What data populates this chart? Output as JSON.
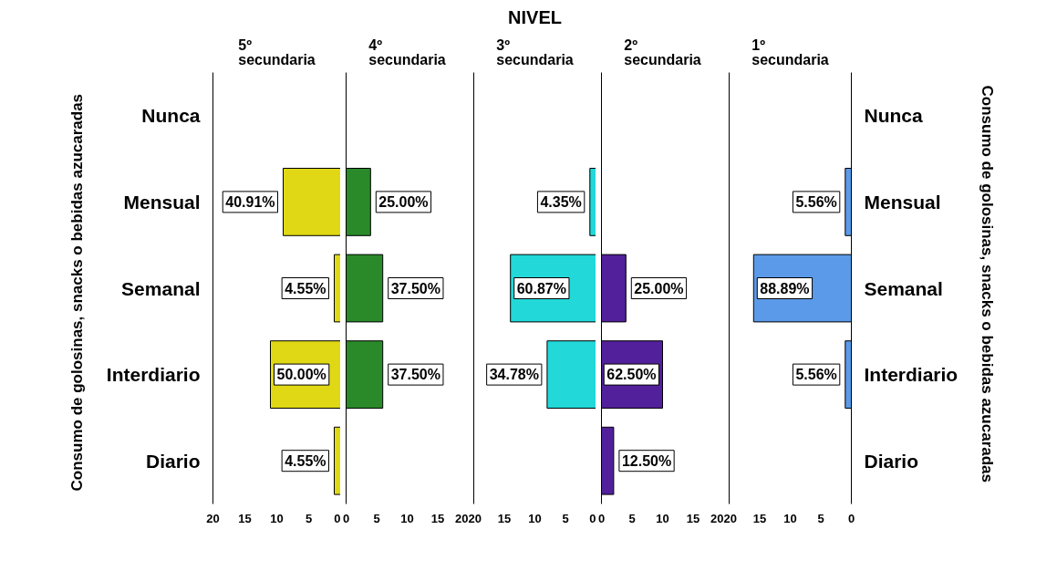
{
  "chart_data": [
    {
      "type": "bar",
      "orientation": "horizontal",
      "subtitle": "5º secundaria",
      "ylabel": "Consumo  de  golosinas, snacks o bebidas azucaradas",
      "categories": [
        "Nunca",
        "Mensual",
        "Semanal",
        "Interdiario",
        "Diario"
      ],
      "values": [
        null,
        9,
        1,
        11,
        1
      ],
      "color": "#e0d814",
      "xlim": [
        20,
        0
      ],
      "xticks": [
        20,
        15,
        10,
        5,
        0
      ],
      "annotations": [
        {
          "text": "40.91%",
          "x": 9,
          "y": "Mensual"
        },
        {
          "text": "4.55%",
          "x": 1,
          "y": "Semanal"
        },
        {
          "text": "50.00%",
          "x": 11,
          "y": "Interdiario"
        },
        {
          "text": "4.55%",
          "x": 1,
          "y": "Diario"
        }
      ]
    },
    {
      "type": "bar",
      "orientation": "horizontal",
      "subtitle": "4º secundaria",
      "tick_labels": "x",
      "categories": [
        "Nunca",
        "Mensual",
        "Semanal",
        "Interdiario",
        "Diario"
      ],
      "values": [
        null,
        4,
        6,
        6,
        null
      ],
      "color": "#2a8a2a",
      "xlim": [
        0,
        20
      ],
      "xticks": [
        0,
        5,
        10,
        15,
        20
      ],
      "annotations": [
        {
          "text": "25.00%",
          "x": 4,
          "y": "Mensual"
        },
        {
          "text": "37.50%",
          "x": 6,
          "y": "Semanal"
        },
        {
          "text": "37.50%",
          "x": 6,
          "y": "Interdiario"
        }
      ]
    },
    {
      "type": "bar",
      "orientation": "horizontal",
      "title": "NIVEL",
      "subtitle": "3º secundaria",
      "tick_labels": "x",
      "categories": [
        "Nunca",
        "Mensual",
        "Semanal",
        "Interdiario",
        "Diario"
      ],
      "values": [
        null,
        1,
        14,
        8,
        null
      ],
      "color": "#22d8d8",
      "xlim": [
        20,
        0
      ],
      "xticks": [
        20,
        15,
        10,
        5,
        0
      ],
      "annotations": [
        {
          "text": "4.35%",
          "x": 1,
          "y": "Mensual"
        },
        {
          "text": "60.87%",
          "x": 14,
          "y": "Semanal"
        },
        {
          "text": "34.78%",
          "x": 8,
          "y": "Interdiario"
        }
      ]
    },
    {
      "type": "bar",
      "orientation": "horizontal",
      "subtitle": "2º secundaria",
      "tick_labels": "x",
      "categories": [
        "Nunca",
        "Mensual",
        "Semanal",
        "Interdiario",
        "Diario"
      ],
      "values": [
        null,
        null,
        4,
        10,
        2
      ],
      "color": "#52209a",
      "xlim": [
        0,
        20
      ],
      "xticks": [
        0,
        5,
        10,
        15,
        20
      ],
      "annotations": [
        {
          "text": "25.00%",
          "x": 4,
          "y": "Semanal"
        },
        {
          "text": "62.50%",
          "x": 10,
          "y": "Interdiario"
        },
        {
          "text": "12.50%",
          "x": 2,
          "y": "Diario"
        }
      ]
    },
    {
      "type": "bar",
      "orientation": "horizontal",
      "subtitle": "1º secundaria",
      "y2label": "Consumo  de  golosinas, snacks o bebidas azucaradas",
      "categories": [
        "Nunca",
        "Mensual",
        "Semanal",
        "Interdiario",
        "Diario"
      ],
      "values": [
        null,
        1,
        16,
        1,
        null
      ],
      "color": "#5b9ae8",
      "xlim": [
        20,
        0
      ],
      "xticks": [
        20,
        15,
        10,
        5,
        0
      ],
      "annotations": [
        {
          "text": "5.56%",
          "x": 1,
          "y": "Mensual"
        },
        {
          "text": "88.89%",
          "x": 16,
          "y": "Semanal"
        },
        {
          "text": "5.56%",
          "x": 1,
          "y": "Interdiario"
        }
      ]
    }
  ]
}
